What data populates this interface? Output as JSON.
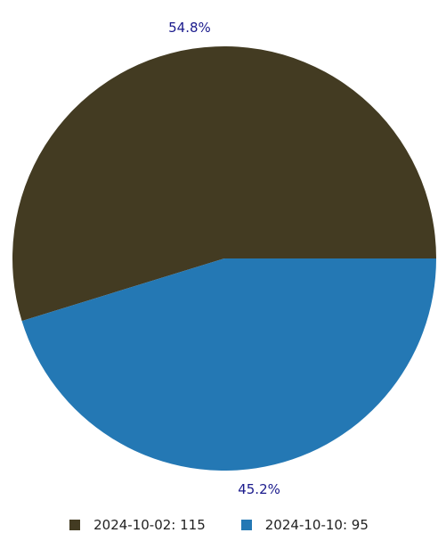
{
  "chart_data": {
    "type": "pie",
    "title": "",
    "categories": [
      "2024-10-02",
      "2024-10-10"
    ],
    "values": [
      115,
      95
    ],
    "percent_labels": [
      "54.8%",
      "45.2%"
    ],
    "colors": [
      "#433b22",
      "#2478b4"
    ],
    "label_color": "#1a1a8c",
    "start_angle_deg": 0,
    "direction": "counterclockwise",
    "legend": {
      "placement": "bottom",
      "entries": [
        {
          "name": "2024-10-02",
          "value": "115"
        },
        {
          "name": "2024-10-10",
          "value": "95"
        }
      ]
    }
  }
}
